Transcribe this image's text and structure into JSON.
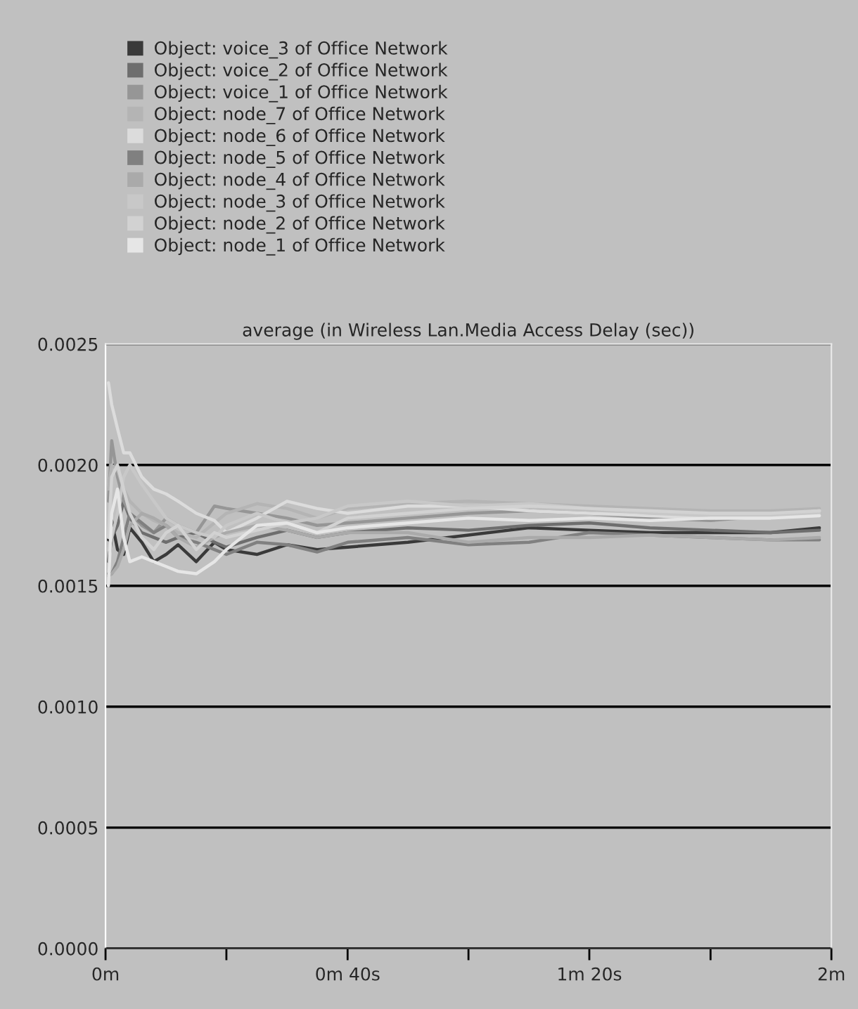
{
  "chart_data": {
    "type": "line",
    "title": "average (in Wireless Lan.Media Access Delay (sec))",
    "x": [
      0.008,
      0.017,
      0.033,
      0.05,
      0.067,
      0.1,
      0.133,
      0.167,
      0.2,
      0.25,
      0.3,
      0.333,
      0.417,
      0.5,
      0.583,
      0.667,
      0.833,
      1,
      1.167,
      1.333,
      1.5,
      1.667,
      1.833,
      1.967
    ],
    "series": [
      {
        "name": "Object: voice_3 of Office Network",
        "color": "#3a3a3a",
        "values": [
          0.00169,
          0.00177,
          0.00165,
          0.00163,
          0.00174,
          0.00168,
          0.0016,
          0.00163,
          0.00167,
          0.0016,
          0.00168,
          0.00165,
          0.00163,
          0.00167,
          0.00165,
          0.00166,
          0.00168,
          0.00171,
          0.00174,
          0.00173,
          0.00172,
          0.00172,
          0.00172,
          0.00174
        ]
      },
      {
        "name": "Object: voice_2 of Office Network",
        "color": "#6e6e6e",
        "values": [
          0.0016,
          0.0017,
          0.00175,
          0.00185,
          0.00178,
          0.00172,
          0.0017,
          0.00168,
          0.0017,
          0.00172,
          0.00168,
          0.00166,
          0.0017,
          0.00173,
          0.0017,
          0.00172,
          0.00174,
          0.00173,
          0.00175,
          0.00176,
          0.00174,
          0.00173,
          0.00172,
          0.00173
        ]
      },
      {
        "name": "Object: voice_1 of Office Network",
        "color": "#969696",
        "values": [
          0.00185,
          0.0021,
          0.00195,
          0.00185,
          0.0018,
          0.00175,
          0.00172,
          0.00178,
          0.00175,
          0.00172,
          0.00183,
          0.00182,
          0.0018,
          0.00178,
          0.00175,
          0.00176,
          0.00178,
          0.0018,
          0.00181,
          0.0018,
          0.00178,
          0.00177,
          0.00179,
          0.0018
        ]
      },
      {
        "name": "Object: node_7 of Office Network",
        "color": "#b4b4b4",
        "values": [
          0.0019,
          0.002,
          0.00198,
          0.0019,
          0.00185,
          0.0018,
          0.00177,
          0.00175,
          0.00172,
          0.0017,
          0.00176,
          0.0018,
          0.00184,
          0.00182,
          0.00178,
          0.00182,
          0.00184,
          0.00185,
          0.00184,
          0.00183,
          0.00182,
          0.00181,
          0.00181,
          0.00182
        ]
      },
      {
        "name": "Object: node_6 of Office Network",
        "color": "#dcdcdc",
        "values": [
          0.00234,
          0.00225,
          0.00215,
          0.00205,
          0.00205,
          0.00195,
          0.0019,
          0.00188,
          0.00185,
          0.0018,
          0.00177,
          0.00172,
          0.00178,
          0.00185,
          0.00182,
          0.0018,
          0.00183,
          0.00183,
          0.00181,
          0.0018,
          0.00179,
          0.00178,
          0.00179,
          0.00181
        ]
      },
      {
        "name": "Object: node_5 of Office Network",
        "color": "#808080",
        "values": [
          0.00155,
          0.00155,
          0.0016,
          0.0017,
          0.0018,
          0.00176,
          0.00172,
          0.00175,
          0.0017,
          0.00168,
          0.00165,
          0.00163,
          0.00168,
          0.00167,
          0.00164,
          0.00168,
          0.0017,
          0.00167,
          0.00168,
          0.00172,
          0.00171,
          0.0017,
          0.00169,
          0.00169
        ]
      },
      {
        "name": "Object: node_4 of Office Network",
        "color": "#aaaaaa",
        "values": [
          0.00154,
          0.00155,
          0.00158,
          0.00165,
          0.00175,
          0.0018,
          0.00178,
          0.00175,
          0.0017,
          0.00166,
          0.0017,
          0.00172,
          0.00175,
          0.00173,
          0.0017,
          0.00172,
          0.00172,
          0.00168,
          0.0017,
          0.0017,
          0.00171,
          0.0017,
          0.00169,
          0.0017
        ]
      },
      {
        "name": "Object: node_3 of Office Network",
        "color": "#c8c8c8",
        "values": [
          0.00165,
          0.0017,
          0.0018,
          0.00195,
          0.002,
          0.00192,
          0.00185,
          0.00178,
          0.00175,
          0.00172,
          0.0017,
          0.00175,
          0.0018,
          0.00176,
          0.00178,
          0.00183,
          0.00185,
          0.00183,
          0.00184,
          0.00182,
          0.0018,
          0.00179,
          0.00179,
          0.0018
        ]
      },
      {
        "name": "Object: node_2 of Office Network",
        "color": "#d2d2d2",
        "values": [
          0.0017,
          0.00195,
          0.002,
          0.0019,
          0.0018,
          0.0017,
          0.00165,
          0.00172,
          0.00175,
          0.00165,
          0.00172,
          0.0017,
          0.00173,
          0.00176,
          0.00172,
          0.00178,
          0.0018,
          0.00182,
          0.00183,
          0.00182,
          0.00181,
          0.0018,
          0.0018,
          0.00181
        ]
      },
      {
        "name": "Object: node_1 of Office Network",
        "color": "#e6e6e6",
        "values": [
          0.0015,
          0.0018,
          0.0019,
          0.0017,
          0.0016,
          0.00162,
          0.0016,
          0.00158,
          0.00156,
          0.00155,
          0.0016,
          0.00165,
          0.00175,
          0.00176,
          0.00172,
          0.00174,
          0.00176,
          0.00178,
          0.00177,
          0.00178,
          0.00177,
          0.00178,
          0.00178,
          0.00179
        ]
      }
    ],
    "xlim": [
      0,
      2
    ],
    "xticks": [
      {
        "value": 0,
        "label": "0m"
      },
      {
        "value": 0.333,
        "label": null
      },
      {
        "value": 0.667,
        "label": "0m 40s"
      },
      {
        "value": 1,
        "label": null
      },
      {
        "value": 1.333,
        "label": "1m 20s"
      },
      {
        "value": 1.667,
        "label": null
      },
      {
        "value": 2,
        "label": "2m"
      }
    ],
    "ylim": [
      0,
      0.0025
    ],
    "yticks": [
      {
        "value": 0,
        "label": "0.0000"
      },
      {
        "value": 0.0005,
        "label": "0.0005"
      },
      {
        "value": 0.001,
        "label": "0.0010"
      },
      {
        "value": 0.0015,
        "label": "0.0015"
      },
      {
        "value": 0.002,
        "label": "0.0020"
      },
      {
        "value": 0.0025,
        "label": "0.0025"
      }
    ],
    "grid": "y",
    "legend": "top",
    "line_style": "solid",
    "marker": "none"
  }
}
